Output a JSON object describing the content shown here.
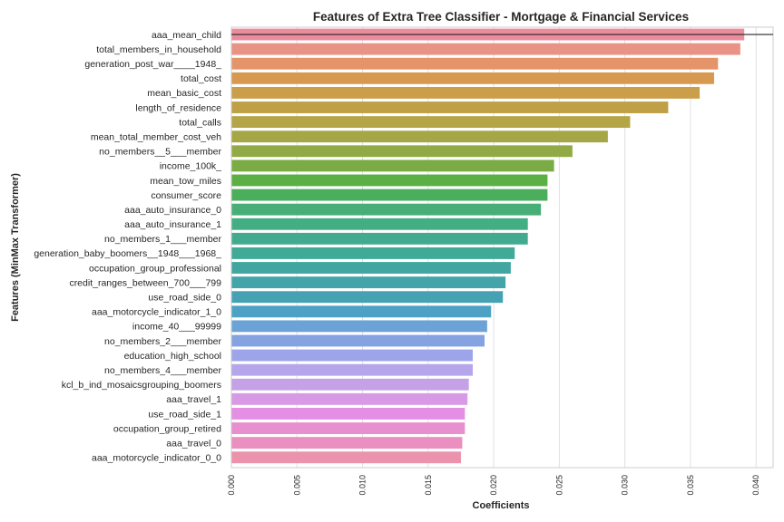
{
  "chart_data": {
    "type": "bar",
    "orientation": "horizontal",
    "title": "Features of Extra Tree Classifier - Mortgage & Financial Services",
    "xlabel": "Coefficients",
    "ylabel": "Features (MinMax Transformer)",
    "xlim": [
      0.0,
      0.0413
    ],
    "xticks": [
      "0.000",
      "0.005",
      "0.010",
      "0.015",
      "0.020",
      "0.025",
      "0.030",
      "0.035",
      "0.040"
    ],
    "grid": "vertical",
    "categories": [
      "aaa_mean_child",
      "total_members_in_household",
      "generation_post_war____1948_",
      "total_cost",
      "mean_basic_cost",
      "length_of_residence",
      "total_calls",
      "mean_total_member_cost_veh",
      "no_members__5___member",
      "income_100k_",
      "mean_tow_miles",
      "consumer_score",
      "aaa_auto_insurance_0",
      "aaa_auto_insurance_1",
      "no_members_1___member",
      "generation_baby_boomers__1948___1968_",
      "occupation_group_professional",
      "credit_ranges_between_700___799",
      "use_road_side_0",
      "aaa_motorcycle_indicator_1_0",
      "income_40___99999",
      "no_members_2___member",
      "education_high_school",
      "no_members_4___member",
      "kcl_b_ind_mosaicsgrouping_boomers",
      "aaa_travel_1",
      "use_road_side_1",
      "occupation_group_retired",
      "aaa_travel_0",
      "aaa_motorcycle_indicator_0_0"
    ],
    "values": [
      0.0391,
      0.0388,
      0.0371,
      0.0368,
      0.0357,
      0.0333,
      0.0304,
      0.0287,
      0.026,
      0.0246,
      0.0241,
      0.0241,
      0.0236,
      0.0226,
      0.0226,
      0.0216,
      0.0213,
      0.0209,
      0.0207,
      0.0198,
      0.0195,
      0.0193,
      0.0184,
      0.0184,
      0.0181,
      0.018,
      0.0178,
      0.0178,
      0.0176,
      0.0175
    ],
    "colors": [
      "#ea8c9b",
      "#e89386",
      "#e5946a",
      "#d7994f",
      "#cb9e4a",
      "#bfa047",
      "#b4a547",
      "#a5a746",
      "#91aa45",
      "#7aab44",
      "#5bb045",
      "#4aae5d",
      "#46ae76",
      "#43ad84",
      "#42ab8f",
      "#41a998",
      "#42a6a0",
      "#43a4a9",
      "#46a2b3",
      "#4da1c5",
      "#6ca3d7",
      "#85a3e0",
      "#9da4e9",
      "#b5a5ea",
      "#c5a1e6",
      "#d89ae5",
      "#e48fe3",
      "#e88fcf",
      "#ea8fbf",
      "#eb92ac"
    ],
    "reference_line": 0.0391
  }
}
